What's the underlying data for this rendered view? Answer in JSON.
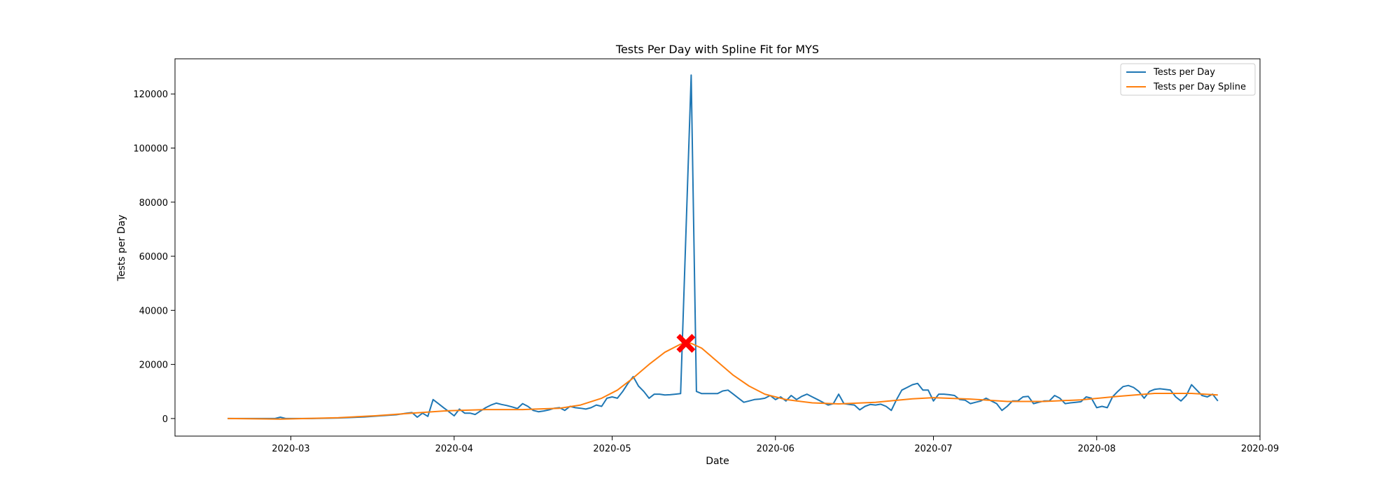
{
  "chart_data": {
    "type": "line",
    "title": "Tests Per Day with Spline Fit for MYS",
    "xlabel": "Date",
    "ylabel": "Tests per Day",
    "x_range": [
      "2020-02-08",
      "2020-09-01"
    ],
    "ylim": [
      -6500,
      133000
    ],
    "x_ticks": [
      "2020-03",
      "2020-04",
      "2020-05",
      "2020-06",
      "2020-07",
      "2020-08",
      "2020-09"
    ],
    "y_ticks": [
      0,
      20000,
      40000,
      60000,
      80000,
      100000,
      120000
    ],
    "grid": false,
    "legend_position": "top-right",
    "series": [
      {
        "name": "Tests per Day",
        "color": "#1f77b4",
        "points": [
          [
            "2020-02-18",
            0
          ],
          [
            "2020-02-24",
            0
          ],
          [
            "2020-02-27",
            0
          ],
          [
            "2020-02-28",
            500
          ],
          [
            "2020-02-29",
            0
          ],
          [
            "2020-03-05",
            0
          ],
          [
            "2020-03-10",
            200
          ],
          [
            "2020-03-15",
            600
          ],
          [
            "2020-03-18",
            1000
          ],
          [
            "2020-03-21",
            1400
          ],
          [
            "2020-03-23",
            2000
          ],
          [
            "2020-03-24",
            2200
          ],
          [
            "2020-03-25",
            500
          ],
          [
            "2020-03-26",
            2000
          ],
          [
            "2020-03-27",
            800
          ],
          [
            "2020-03-28",
            7000
          ],
          [
            "2020-03-29",
            5500
          ],
          [
            "2020-03-30",
            4000
          ],
          [
            "2020-03-31",
            2500
          ],
          [
            "2020-04-01",
            1000
          ],
          [
            "2020-04-02",
            3500
          ],
          [
            "2020-04-03",
            2000
          ],
          [
            "2020-04-04",
            2000
          ],
          [
            "2020-04-05",
            1500
          ],
          [
            "2020-04-06",
            2800
          ],
          [
            "2020-04-07",
            4000
          ],
          [
            "2020-04-08",
            5000
          ],
          [
            "2020-04-09",
            5700
          ],
          [
            "2020-04-10",
            5200
          ],
          [
            "2020-04-11",
            4800
          ],
          [
            "2020-04-12",
            4300
          ],
          [
            "2020-04-13",
            3700
          ],
          [
            "2020-04-14",
            5500
          ],
          [
            "2020-04-15",
            4500
          ],
          [
            "2020-04-16",
            3000
          ],
          [
            "2020-04-17",
            2500
          ],
          [
            "2020-04-18",
            2800
          ],
          [
            "2020-04-19",
            3200
          ],
          [
            "2020-04-20",
            3800
          ],
          [
            "2020-04-21",
            4000
          ],
          [
            "2020-04-22",
            3000
          ],
          [
            "2020-04-23",
            4500
          ],
          [
            "2020-04-24",
            4000
          ],
          [
            "2020-04-25",
            3800
          ],
          [
            "2020-04-26",
            3500
          ],
          [
            "2020-04-27",
            4000
          ],
          [
            "2020-04-28",
            5000
          ],
          [
            "2020-04-29",
            4500
          ],
          [
            "2020-04-30",
            7500
          ],
          [
            "2020-05-01",
            8000
          ],
          [
            "2020-05-02",
            7500
          ],
          [
            "2020-05-03",
            10000
          ],
          [
            "2020-05-04",
            13000
          ],
          [
            "2020-05-05",
            15500
          ],
          [
            "2020-05-06",
            12000
          ],
          [
            "2020-05-07",
            10000
          ],
          [
            "2020-05-08",
            7500
          ],
          [
            "2020-05-09",
            9000
          ],
          [
            "2020-05-10",
            9000
          ],
          [
            "2020-05-11",
            8700
          ],
          [
            "2020-05-12",
            8800
          ],
          [
            "2020-05-13",
            9000
          ],
          [
            "2020-05-14",
            9200
          ],
          [
            "2020-05-16",
            127000
          ],
          [
            "2020-05-17",
            10000
          ],
          [
            "2020-05-18",
            9200
          ],
          [
            "2020-05-19",
            9200
          ],
          [
            "2020-05-20",
            9200
          ],
          [
            "2020-05-21",
            9200
          ],
          [
            "2020-05-22",
            10200
          ],
          [
            "2020-05-23",
            10500
          ],
          [
            "2020-05-24",
            9000
          ],
          [
            "2020-05-25",
            7500
          ],
          [
            "2020-05-26",
            6000
          ],
          [
            "2020-05-27",
            6500
          ],
          [
            "2020-05-28",
            7000
          ],
          [
            "2020-05-29",
            7200
          ],
          [
            "2020-05-30",
            7500
          ],
          [
            "2020-05-31",
            8500
          ],
          [
            "2020-06-01",
            7000
          ],
          [
            "2020-06-02",
            8000
          ],
          [
            "2020-06-03",
            6500
          ],
          [
            "2020-06-04",
            8500
          ],
          [
            "2020-06-05",
            7000
          ],
          [
            "2020-06-06",
            8200
          ],
          [
            "2020-06-07",
            9000
          ],
          [
            "2020-06-08",
            8000
          ],
          [
            "2020-06-09",
            7000
          ],
          [
            "2020-06-10",
            6000
          ],
          [
            "2020-06-11",
            5000
          ],
          [
            "2020-06-12",
            5500
          ],
          [
            "2020-06-13",
            9000
          ],
          [
            "2020-06-14",
            5500
          ],
          [
            "2020-06-15",
            5200
          ],
          [
            "2020-06-16",
            5000
          ],
          [
            "2020-06-17",
            3200
          ],
          [
            "2020-06-18",
            4500
          ],
          [
            "2020-06-19",
            5200
          ],
          [
            "2020-06-20",
            5000
          ],
          [
            "2020-06-21",
            5300
          ],
          [
            "2020-06-22",
            4500
          ],
          [
            "2020-06-23",
            3000
          ],
          [
            "2020-06-24",
            7000
          ],
          [
            "2020-06-25",
            10500
          ],
          [
            "2020-06-26",
            11500
          ],
          [
            "2020-06-27",
            12500
          ],
          [
            "2020-06-28",
            13000
          ],
          [
            "2020-06-29",
            10500
          ],
          [
            "2020-06-30",
            10500
          ],
          [
            "2020-07-01",
            6500
          ],
          [
            "2020-07-02",
            9000
          ],
          [
            "2020-07-03",
            9000
          ],
          [
            "2020-07-04",
            8800
          ],
          [
            "2020-07-05",
            8500
          ],
          [
            "2020-07-06",
            7000
          ],
          [
            "2020-07-07",
            6800
          ],
          [
            "2020-07-08",
            5500
          ],
          [
            "2020-07-09",
            6000
          ],
          [
            "2020-07-10",
            6500
          ],
          [
            "2020-07-11",
            7500
          ],
          [
            "2020-07-12",
            6500
          ],
          [
            "2020-07-13",
            5500
          ],
          [
            "2020-07-14",
            3000
          ],
          [
            "2020-07-15",
            4500
          ],
          [
            "2020-07-16",
            6500
          ],
          [
            "2020-07-17",
            6500
          ],
          [
            "2020-07-18",
            8000
          ],
          [
            "2020-07-19",
            8200
          ],
          [
            "2020-07-20",
            5500
          ],
          [
            "2020-07-21",
            6000
          ],
          [
            "2020-07-22",
            6500
          ],
          [
            "2020-07-23",
            6500
          ],
          [
            "2020-07-24",
            8500
          ],
          [
            "2020-07-25",
            7500
          ],
          [
            "2020-07-26",
            5500
          ],
          [
            "2020-07-27",
            5800
          ],
          [
            "2020-07-28",
            6000
          ],
          [
            "2020-07-29",
            6200
          ],
          [
            "2020-07-30",
            8000
          ],
          [
            "2020-07-31",
            7500
          ],
          [
            "2020-08-01",
            4000
          ],
          [
            "2020-08-02",
            4500
          ],
          [
            "2020-08-03",
            4000
          ],
          [
            "2020-08-04",
            8000
          ],
          [
            "2020-08-05",
            10000
          ],
          [
            "2020-08-06",
            11800
          ],
          [
            "2020-08-07",
            12200
          ],
          [
            "2020-08-08",
            11500
          ],
          [
            "2020-08-09",
            10000
          ],
          [
            "2020-08-10",
            7500
          ],
          [
            "2020-08-11",
            10000
          ],
          [
            "2020-08-12",
            10800
          ],
          [
            "2020-08-13",
            11000
          ],
          [
            "2020-08-14",
            10800
          ],
          [
            "2020-08-15",
            10500
          ],
          [
            "2020-08-16",
            8000
          ],
          [
            "2020-08-17",
            6500
          ],
          [
            "2020-08-18",
            8500
          ],
          [
            "2020-08-19",
            12500
          ],
          [
            "2020-08-20",
            10500
          ],
          [
            "2020-08-21",
            8500
          ],
          [
            "2020-08-22",
            8000
          ],
          [
            "2020-08-23",
            9000
          ],
          [
            "2020-08-24",
            6500
          ]
        ]
      },
      {
        "name": "Tests per Day Spline",
        "color": "#ff7f0e",
        "points": [
          [
            "2020-02-18",
            0
          ],
          [
            "2020-02-28",
            -200
          ],
          [
            "2020-03-10",
            300
          ],
          [
            "2020-03-17",
            1000
          ],
          [
            "2020-03-24",
            2000
          ],
          [
            "2020-03-31",
            2900
          ],
          [
            "2020-04-07",
            3300
          ],
          [
            "2020-04-14",
            3300
          ],
          [
            "2020-04-21",
            3800
          ],
          [
            "2020-04-25",
            5000
          ],
          [
            "2020-04-29",
            7500
          ],
          [
            "2020-05-02",
            10500
          ],
          [
            "2020-05-05",
            15000
          ],
          [
            "2020-05-08",
            20000
          ],
          [
            "2020-05-11",
            24500
          ],
          [
            "2020-05-14",
            27500
          ],
          [
            "2020-05-16",
            27800
          ],
          [
            "2020-05-18",
            26000
          ],
          [
            "2020-05-21",
            21000
          ],
          [
            "2020-05-24",
            16000
          ],
          [
            "2020-05-27",
            12000
          ],
          [
            "2020-05-30",
            9000
          ],
          [
            "2020-06-03",
            7000
          ],
          [
            "2020-06-08",
            5800
          ],
          [
            "2020-06-13",
            5400
          ],
          [
            "2020-06-20",
            6000
          ],
          [
            "2020-06-27",
            7300
          ],
          [
            "2020-07-01",
            7700
          ],
          [
            "2020-07-08",
            7200
          ],
          [
            "2020-07-15",
            6300
          ],
          [
            "2020-07-22",
            6300
          ],
          [
            "2020-07-29",
            6900
          ],
          [
            "2020-08-05",
            8200
          ],
          [
            "2020-08-12",
            9300
          ],
          [
            "2020-08-19",
            9300
          ],
          [
            "2020-08-24",
            8700
          ]
        ]
      }
    ],
    "annotations": [
      {
        "type": "marker",
        "shape": "X",
        "color": "#ff0000",
        "x": "2020-05-15",
        "y": 27800
      }
    ]
  }
}
